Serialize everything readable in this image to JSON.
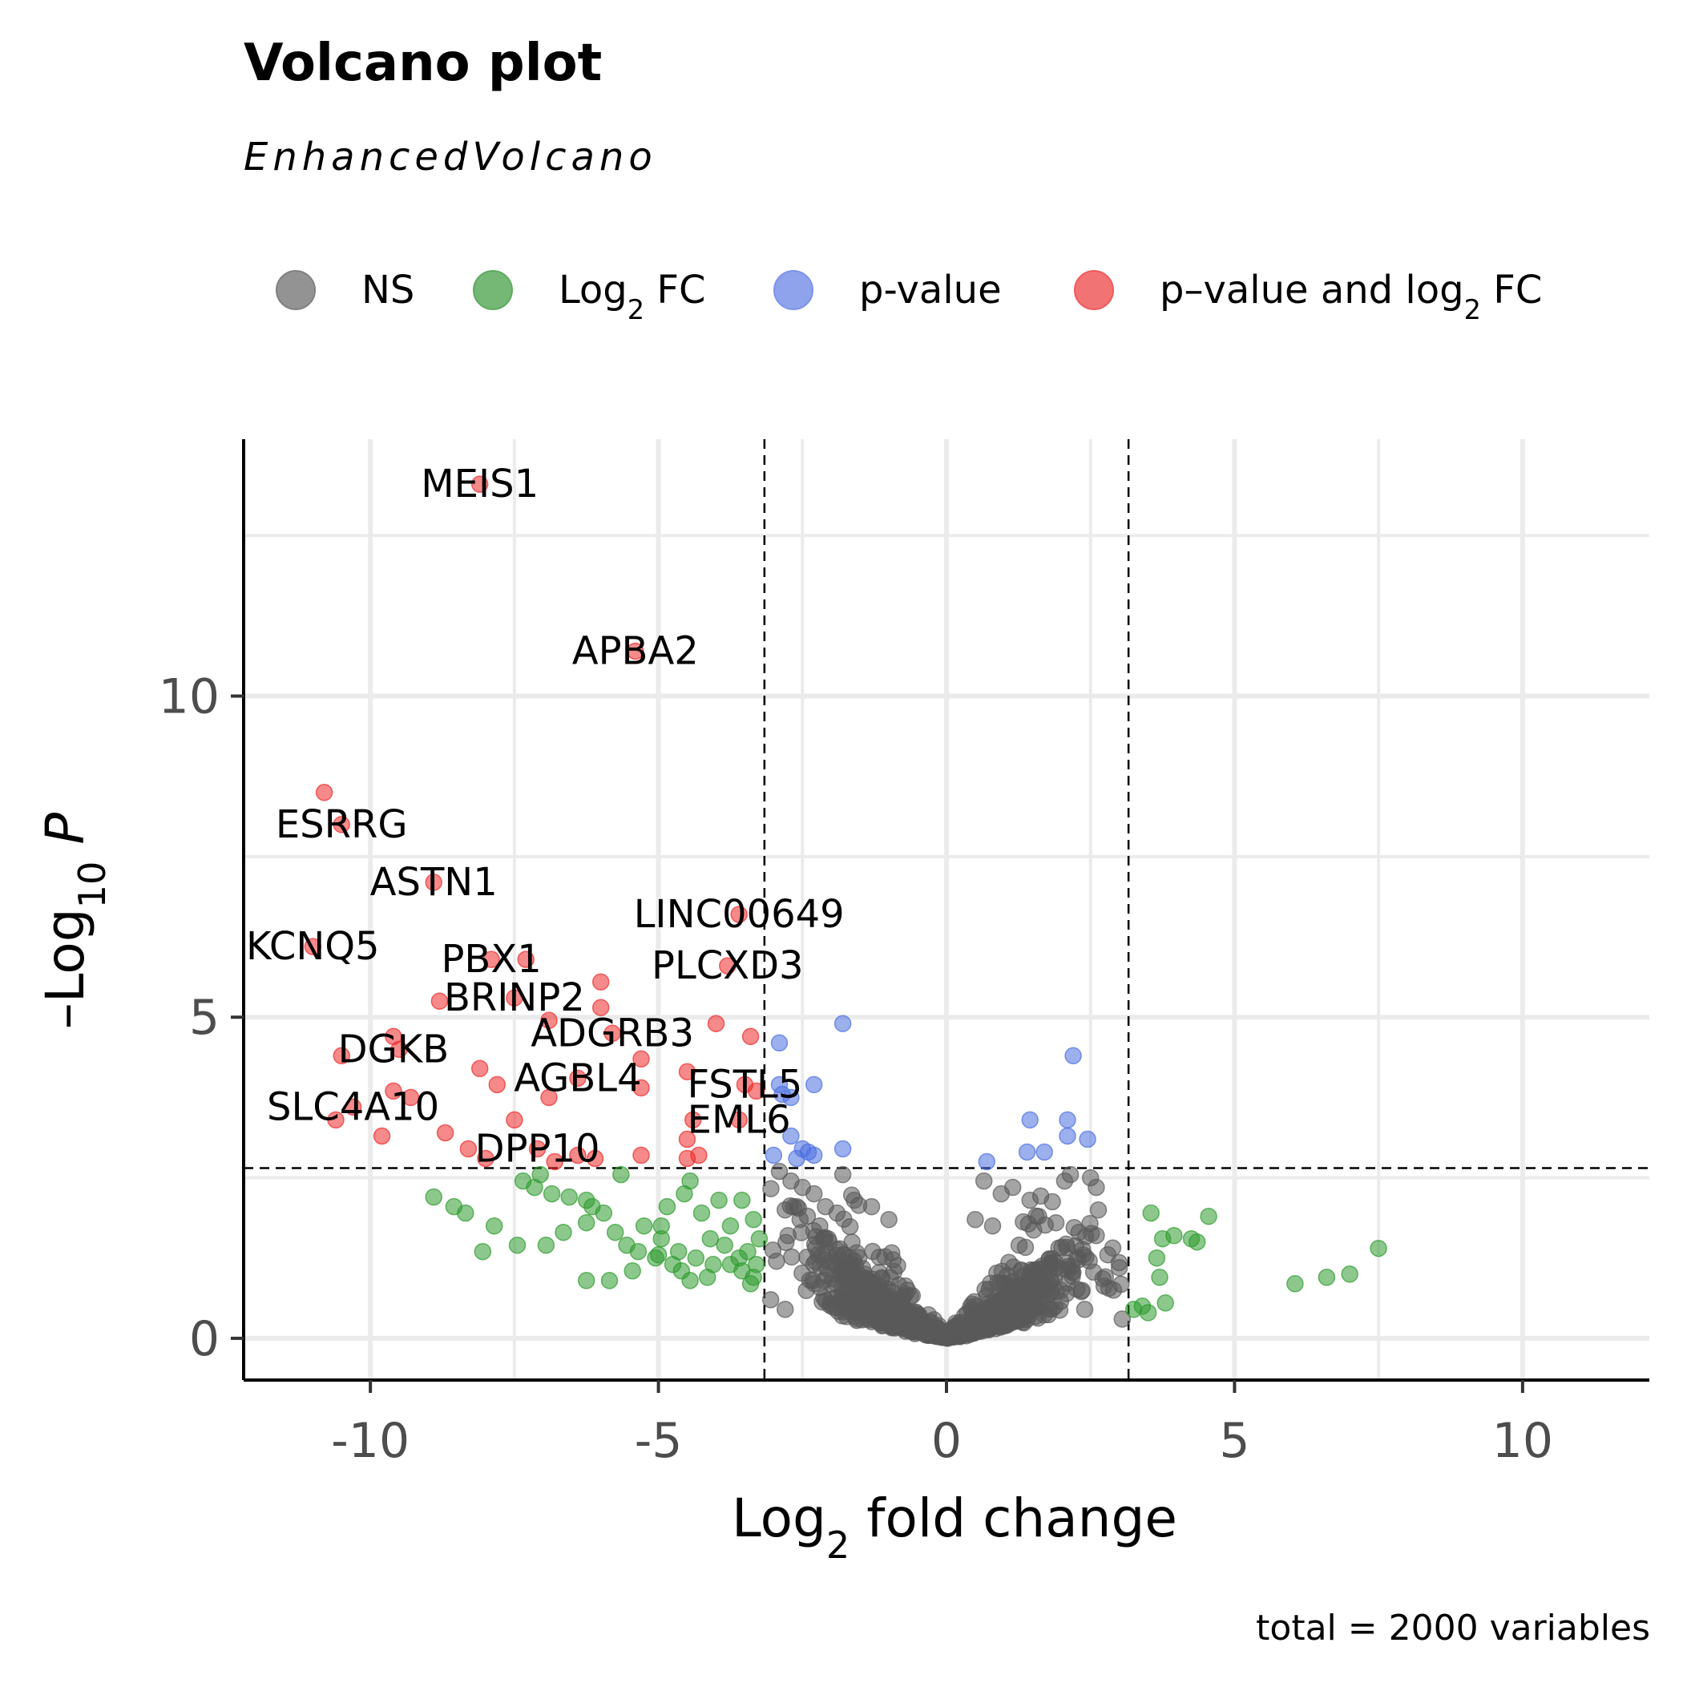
{
  "chart_data": {
    "type": "scatter",
    "title": "Volcano plot",
    "subtitle": "EnhancedVolcano",
    "caption": "total = 2000 variables",
    "xlabel": {
      "base": "Log",
      "sub": "2",
      "rest": " fold change"
    },
    "ylabel": {
      "sign": "–",
      "base": "Log",
      "sub": "10",
      "var": " P"
    },
    "xlim": [
      -12.2,
      12.2
    ],
    "ylim": [
      -0.65,
      14.0
    ],
    "x_ticks": [
      -10,
      -5,
      0,
      5,
      10
    ],
    "x_tick_labels": [
      "-10",
      "-5",
      "0",
      "5",
      "10"
    ],
    "y_ticks": [
      0,
      5,
      10
    ],
    "y_tick_labels": [
      "0",
      "5",
      "10"
    ],
    "grid": true,
    "legend_position": "top",
    "fc_cutoff": 3.16,
    "p_cutoff_neglog10": 2.65,
    "colors": {
      "NS": "#5a5a5a",
      "FC": "#2e9b2e",
      "P": "#4a6fe0",
      "FC_P": "#ee2a2a"
    },
    "legend": [
      {
        "key": "NS",
        "color": "#808080",
        "label": "NS"
      },
      {
        "key": "FC",
        "color": "#5daa5d",
        "label": {
          "base": "Log",
          "sub": "2",
          "rest": " FC"
        }
      },
      {
        "key": "P",
        "color": "#7b93ea",
        "label": "p-value"
      },
      {
        "key": "FC_P",
        "color": "#f05a5a",
        "label": {
          "base": "p–value and log",
          "sub": "2",
          "rest": " FC"
        }
      }
    ],
    "series": [
      {
        "name": "p–value and log2 FC",
        "key": "FC_P",
        "points": [
          [
            -8.1,
            13.3
          ],
          [
            -5.4,
            10.7
          ],
          [
            -10.8,
            8.5
          ],
          [
            -10.5,
            8.0
          ],
          [
            -8.9,
            7.1
          ],
          [
            -11.0,
            6.1
          ],
          [
            -3.6,
            6.6
          ],
          [
            -7.9,
            5.9
          ],
          [
            -7.3,
            5.9
          ],
          [
            -3.8,
            5.8
          ],
          [
            -6.0,
            5.55
          ],
          [
            -6.0,
            5.15
          ],
          [
            -7.5,
            5.3
          ],
          [
            -8.8,
            5.25
          ],
          [
            -6.9,
            4.95
          ],
          [
            -4.0,
            4.9
          ],
          [
            -9.6,
            4.7
          ],
          [
            -9.5,
            4.5
          ],
          [
            -5.8,
            4.75
          ],
          [
            -10.5,
            4.4
          ],
          [
            -5.3,
            4.35
          ],
          [
            -3.4,
            4.7
          ],
          [
            -8.1,
            4.2
          ],
          [
            -6.4,
            4.05
          ],
          [
            -7.8,
            3.95
          ],
          [
            -4.5,
            4.15
          ],
          [
            -5.3,
            3.9
          ],
          [
            -3.5,
            3.95
          ],
          [
            -3.3,
            3.85
          ],
          [
            -6.9,
            3.75
          ],
          [
            -9.6,
            3.85
          ],
          [
            -9.3,
            3.75
          ],
          [
            -10.3,
            3.6
          ],
          [
            -10.6,
            3.4
          ],
          [
            -7.5,
            3.4
          ],
          [
            -9.8,
            3.15
          ],
          [
            -8.7,
            3.2
          ],
          [
            -3.6,
            3.4
          ],
          [
            -4.4,
            3.4
          ],
          [
            -4.5,
            3.1
          ],
          [
            -8.3,
            2.95
          ],
          [
            -8.0,
            2.8
          ],
          [
            -7.1,
            2.95
          ],
          [
            -5.3,
            2.85
          ],
          [
            -4.5,
            2.8
          ],
          [
            -4.3,
            2.85
          ],
          [
            -6.8,
            2.75
          ],
          [
            -6.4,
            2.85
          ],
          [
            -6.1,
            2.8
          ]
        ],
        "labels": [
          {
            "text": "MEIS1",
            "x": -8.1,
            "y": 13.3
          },
          {
            "text": "APBA2",
            "x": -5.4,
            "y": 10.7
          },
          {
            "text": "ESRRG",
            "x": -10.5,
            "y": 8.0
          },
          {
            "text": "ASTN1",
            "x": -8.9,
            "y": 7.1
          },
          {
            "text": "LINC00649",
            "x": -3.6,
            "y": 6.6
          },
          {
            "text": "KCNQ5",
            "x": -11.0,
            "y": 6.1
          },
          {
            "text": "PBX1",
            "x": -7.9,
            "y": 5.9
          },
          {
            "text": "PLCXD3",
            "x": -3.8,
            "y": 5.8
          },
          {
            "text": "BRINP2",
            "x": -7.5,
            "y": 5.3
          },
          {
            "text": "ADGRB3",
            "x": -5.8,
            "y": 4.75
          },
          {
            "text": "DGKB",
            "x": -9.6,
            "y": 4.5
          },
          {
            "text": "AGBL4",
            "x": -6.4,
            "y": 4.05
          },
          {
            "text": "FSTL5",
            "x": -3.5,
            "y": 3.95
          },
          {
            "text": "SLC4A10",
            "x": -10.3,
            "y": 3.6
          },
          {
            "text": "EML6",
            "x": -3.6,
            "y": 3.4
          },
          {
            "text": "DPP10",
            "x": -7.1,
            "y": 2.95
          }
        ]
      },
      {
        "name": "p-value",
        "key": "P",
        "points": [
          [
            -1.8,
            4.9
          ],
          [
            -2.9,
            4.6
          ],
          [
            2.2,
            4.4
          ],
          [
            -2.3,
            3.95
          ],
          [
            -2.9,
            3.95
          ],
          [
            -2.85,
            3.8
          ],
          [
            -2.7,
            3.75
          ],
          [
            1.45,
            3.4
          ],
          [
            2.1,
            3.4
          ],
          [
            2.1,
            3.15
          ],
          [
            2.45,
            3.1
          ],
          [
            -2.7,
            3.15
          ],
          [
            -1.8,
            2.95
          ],
          [
            1.4,
            2.9
          ],
          [
            1.7,
            2.9
          ],
          [
            -2.5,
            2.95
          ],
          [
            -2.3,
            2.85
          ],
          [
            -2.6,
            2.8
          ],
          [
            -3.0,
            2.85
          ],
          [
            -2.4,
            2.9
          ],
          [
            0.7,
            2.75
          ]
        ]
      },
      {
        "name": "Log2 FC",
        "key": "FC",
        "points": [
          [
            -8.9,
            2.2
          ],
          [
            -8.55,
            2.05
          ],
          [
            -8.35,
            1.95
          ],
          [
            -7.85,
            1.75
          ],
          [
            -8.05,
            1.35
          ],
          [
            -7.45,
            1.45
          ],
          [
            -7.35,
            2.45
          ],
          [
            -7.15,
            2.35
          ],
          [
            -6.85,
            2.25
          ],
          [
            -6.55,
            2.2
          ],
          [
            -6.25,
            2.15
          ],
          [
            -6.65,
            1.65
          ],
          [
            -6.95,
            1.45
          ],
          [
            -6.25,
            1.8
          ],
          [
            -5.95,
            1.95
          ],
          [
            -5.75,
            1.65
          ],
          [
            -5.55,
            1.45
          ],
          [
            -5.25,
            1.75
          ],
          [
            -4.95,
            1.55
          ],
          [
            -4.65,
            1.35
          ],
          [
            -4.35,
            1.25
          ],
          [
            -4.05,
            1.15
          ],
          [
            -3.85,
            1.45
          ],
          [
            -3.55,
            1.05
          ],
          [
            -3.35,
            0.95
          ],
          [
            -6.25,
            0.9
          ],
          [
            -5.85,
            0.9
          ],
          [
            -5.45,
            1.05
          ],
          [
            -5.05,
            1.25
          ],
          [
            -4.75,
            1.15
          ],
          [
            -4.45,
            0.9
          ],
          [
            -4.15,
            0.95
          ],
          [
            -3.75,
            1.15
          ],
          [
            -3.45,
            1.35
          ],
          [
            -5.65,
            2.55
          ],
          [
            -4.85,
            2.05
          ],
          [
            -4.55,
            2.25
          ],
          [
            -4.25,
            1.95
          ],
          [
            -3.95,
            2.15
          ],
          [
            -3.75,
            1.75
          ],
          [
            -3.55,
            2.15
          ],
          [
            -3.35,
            1.85
          ],
          [
            -4.95,
            1.75
          ],
          [
            -5.35,
            1.35
          ],
          [
            -3.25,
            1.55
          ],
          [
            -7.05,
            2.55
          ],
          [
            -6.15,
            2.05
          ],
          [
            -4.45,
            2.45
          ],
          [
            -3.3,
            1.15
          ],
          [
            -3.4,
            0.85
          ],
          [
            -3.6,
            1.25
          ],
          [
            -4.1,
            1.55
          ],
          [
            -4.6,
            1.05
          ],
          [
            -5.0,
            1.3
          ],
          [
            3.55,
            1.95
          ],
          [
            3.75,
            1.55
          ],
          [
            3.95,
            1.6
          ],
          [
            4.25,
            1.55
          ],
          [
            4.35,
            1.5
          ],
          [
            4.55,
            1.9
          ],
          [
            3.65,
            1.25
          ],
          [
            3.7,
            0.95
          ],
          [
            3.8,
            0.55
          ],
          [
            3.25,
            0.45
          ],
          [
            3.5,
            0.4
          ],
          [
            3.4,
            0.5
          ],
          [
            7.5,
            1.4
          ],
          [
            7.0,
            1.0
          ],
          [
            6.6,
            0.95
          ],
          [
            6.05,
            0.85
          ]
        ]
      },
      {
        "name": "NS",
        "key": "NS",
        "procedural": true,
        "count": 1866,
        "x_sd": 0.95,
        "extreme_points": [
          [
            -2.9,
            2.6
          ],
          [
            -2.7,
            2.45
          ],
          [
            -2.5,
            2.35
          ],
          [
            -2.3,
            2.25
          ],
          [
            -1.8,
            2.55
          ],
          [
            -1.6,
            2.15
          ],
          [
            -1.3,
            2.05
          ],
          [
            -1.0,
            1.85
          ],
          [
            -2.1,
            2.05
          ],
          [
            -1.9,
            1.95
          ],
          [
            -2.6,
            2.05
          ],
          [
            -2.2,
            1.75
          ],
          [
            0.65,
            2.45
          ],
          [
            0.95,
            2.25
          ],
          [
            1.15,
            2.35
          ],
          [
            1.45,
            2.15
          ],
          [
            2.15,
            2.55
          ],
          [
            2.05,
            2.45
          ],
          [
            2.5,
            2.5
          ],
          [
            2.6,
            2.35
          ],
          [
            1.9,
            1.8
          ],
          [
            2.3,
            1.65
          ],
          [
            2.6,
            1.6
          ],
          [
            2.8,
            1.3
          ],
          [
            3.0,
            1.1
          ],
          [
            2.9,
            0.75
          ],
          [
            2.4,
            0.45
          ],
          [
            -2.8,
            0.45
          ],
          [
            -3.05,
            0.6
          ],
          [
            -2.95,
            1.2
          ],
          [
            -2.75,
            1.6
          ],
          [
            0.5,
            1.85
          ],
          [
            0.8,
            1.75
          ],
          [
            1.6,
            1.9
          ],
          [
            3.05,
            0.3
          ]
        ]
      }
    ]
  }
}
